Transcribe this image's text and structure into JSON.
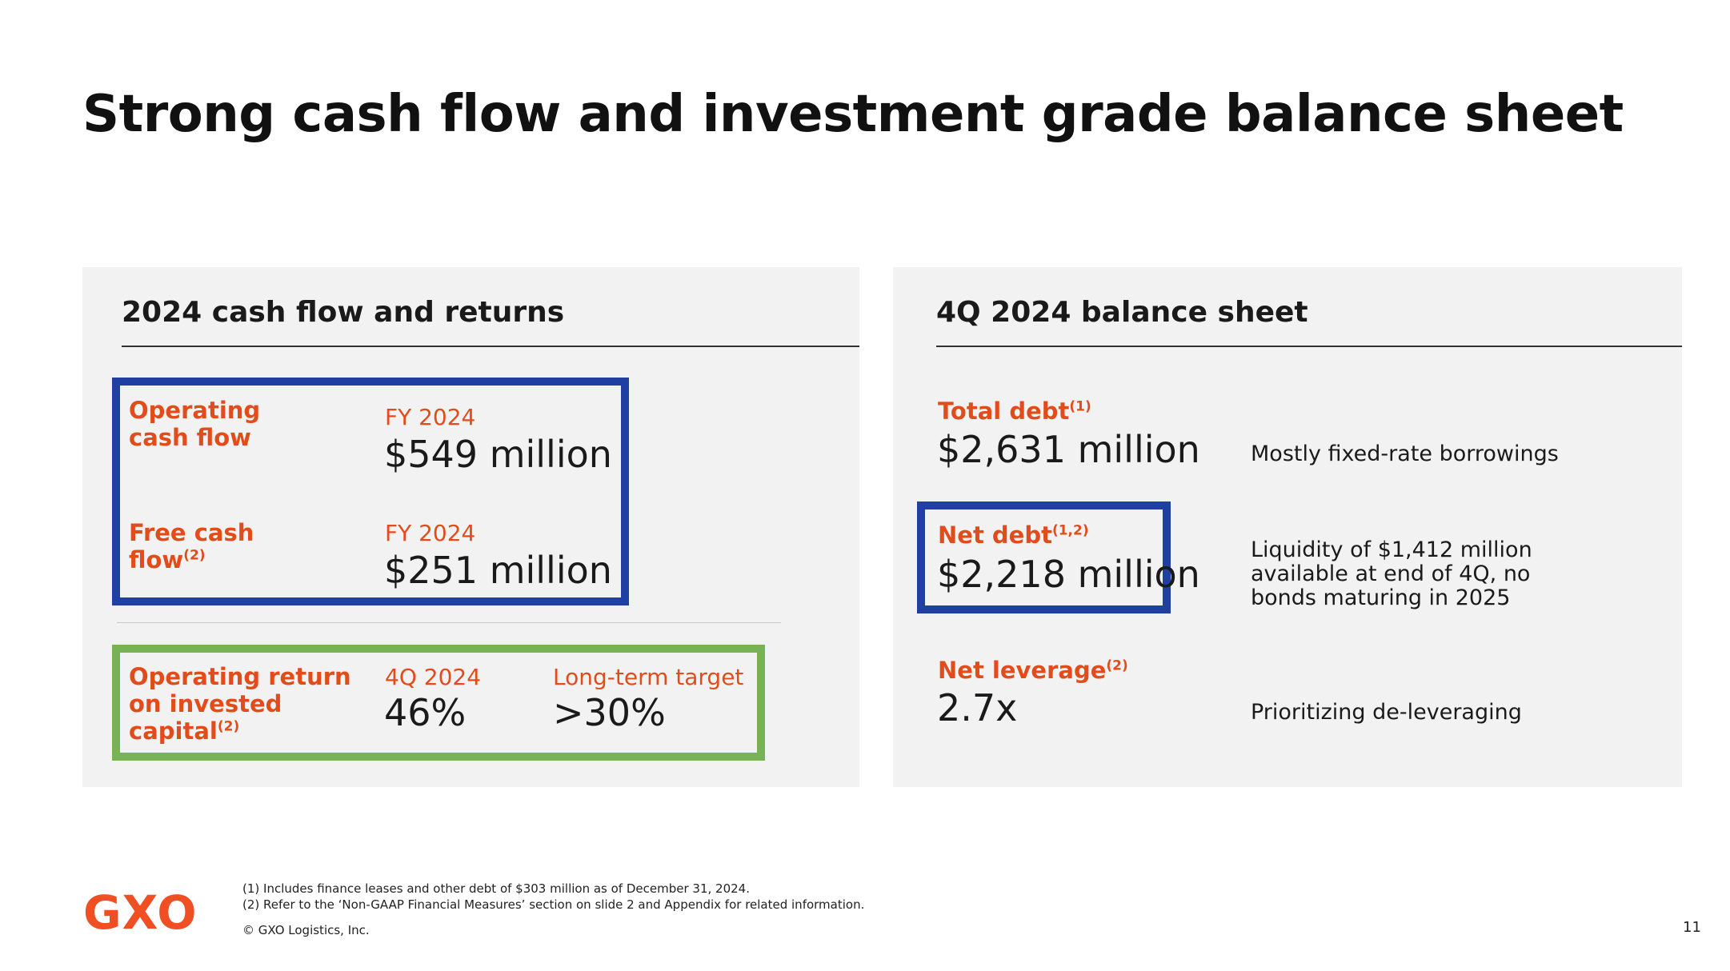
{
  "slide": {
    "title": "Strong cash flow and investment grade balance sheet",
    "page_number": "11"
  },
  "colors": {
    "accent": "#e24c1b",
    "blue_box": "#1f3fa3",
    "green_box": "#77b255",
    "panel_bg": "#f2f2f2"
  },
  "left": {
    "heading": "2024 cash flow and returns",
    "ocf": {
      "label_1": "Operating",
      "label_2": "cash flow",
      "period": "FY 2024",
      "value": "$549 million"
    },
    "fcf": {
      "label_1": "Free cash",
      "label_2": "flow",
      "sup": "(2)",
      "period": "FY 2024",
      "value": "$251 million"
    },
    "roic": {
      "label_1": "Operating return",
      "label_2": "on invested",
      "label_3": "capital",
      "sup": "(2)",
      "period": "4Q 2024",
      "value": "46%",
      "target_label": "Long-term target",
      "target_value": ">30%"
    }
  },
  "right": {
    "heading": "4Q 2024 balance sheet",
    "total_debt": {
      "label": "Total debt",
      "sup": "(1)",
      "value": "$2,631 million",
      "note": "Mostly fixed-rate borrowings"
    },
    "net_debt": {
      "label": "Net debt",
      "sup": "(1,2)",
      "value": "$2,218 million",
      "note_1": "Liquidity of $1,412 million",
      "note_2": "available at end of 4Q, no",
      "note_3": "bonds maturing in 2025"
    },
    "net_leverage": {
      "label": "Net leverage",
      "sup": "(2)",
      "value": "2.7x",
      "note": "Prioritizing de-leveraging"
    }
  },
  "footer": {
    "logo": "GXO",
    "footnote_1": "(1) Includes  finance  leases  and  other debt of $303 million  as of December  31, 2024.",
    "footnote_2": "(2) Refer to the ‘Non-GAAP  Financial  Measures’  section on slide  2 and Appendix  for related  information.",
    "copyright": "© GXO Logistics, Inc."
  }
}
